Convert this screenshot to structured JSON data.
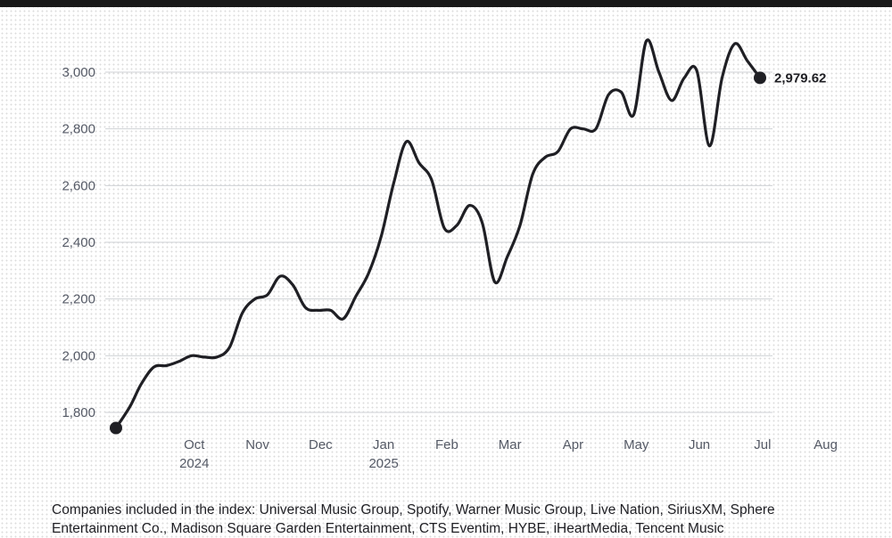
{
  "chart_data": {
    "type": "line",
    "title": "",
    "xlabel": "",
    "ylabel": "",
    "ylim": [
      1720,
      3130
    ],
    "yticks": [
      1800,
      2000,
      2200,
      2400,
      2600,
      2800,
      3000
    ],
    "ytick_labels": [
      "1,800",
      "2,000",
      "2,200",
      "2,400",
      "2,600",
      "2,800",
      "3,000"
    ],
    "xticks": [
      {
        "t": 1.5,
        "label": "Oct",
        "year": "2024"
      },
      {
        "t": 2.5,
        "label": "Nov",
        "year": ""
      },
      {
        "t": 3.5,
        "label": "Dec",
        "year": ""
      },
      {
        "t": 4.5,
        "label": "Jan",
        "year": "2025"
      },
      {
        "t": 5.5,
        "label": "Feb",
        "year": ""
      },
      {
        "t": 6.5,
        "label": "Mar",
        "year": ""
      },
      {
        "t": 7.5,
        "label": "Apr",
        "year": ""
      },
      {
        "t": 8.5,
        "label": "May",
        "year": ""
      },
      {
        "t": 9.5,
        "label": "Jun",
        "year": ""
      },
      {
        "t": 10.5,
        "label": "Jul",
        "year": ""
      },
      {
        "t": 11.5,
        "label": "Aug",
        "year": ""
      }
    ],
    "grid": true,
    "end_label": "2,979.62",
    "series": [
      {
        "color": "#1f1f24",
        "points": [
          [
            0.26,
            1745
          ],
          [
            0.48,
            1820
          ],
          [
            0.66,
            1900
          ],
          [
            0.86,
            1960
          ],
          [
            1.06,
            1965
          ],
          [
            1.26,
            1980
          ],
          [
            1.46,
            2000
          ],
          [
            1.66,
            1995
          ],
          [
            1.86,
            1995
          ],
          [
            2.06,
            2030
          ],
          [
            2.26,
            2150
          ],
          [
            2.46,
            2200
          ],
          [
            2.66,
            2215
          ],
          [
            2.86,
            2280
          ],
          [
            3.06,
            2250
          ],
          [
            3.26,
            2170
          ],
          [
            3.46,
            2160
          ],
          [
            3.66,
            2160
          ],
          [
            3.86,
            2130
          ],
          [
            4.06,
            2210
          ],
          [
            4.26,
            2290
          ],
          [
            4.46,
            2420
          ],
          [
            4.66,
            2610
          ],
          [
            4.86,
            2755
          ],
          [
            5.06,
            2680
          ],
          [
            5.26,
            2620
          ],
          [
            5.46,
            2450
          ],
          [
            5.66,
            2460
          ],
          [
            5.86,
            2530
          ],
          [
            6.06,
            2470
          ],
          [
            6.26,
            2260
          ],
          [
            6.46,
            2350
          ],
          [
            6.66,
            2460
          ],
          [
            6.86,
            2640
          ],
          [
            7.06,
            2700
          ],
          [
            7.26,
            2720
          ],
          [
            7.46,
            2800
          ],
          [
            7.66,
            2800
          ],
          [
            7.86,
            2800
          ],
          [
            8.06,
            2920
          ],
          [
            8.26,
            2930
          ],
          [
            8.46,
            2850
          ],
          [
            8.66,
            3110
          ],
          [
            8.86,
            3000
          ],
          [
            9.06,
            2900
          ],
          [
            9.26,
            2980
          ],
          [
            9.46,
            3005
          ],
          [
            9.66,
            2740
          ],
          [
            9.86,
            2980
          ],
          [
            10.06,
            3100
          ],
          [
            10.26,
            3040
          ],
          [
            10.46,
            2980
          ]
        ]
      }
    ]
  },
  "footnote": "Companies included in the index: Universal Music Group, Spotify, Warner Music Group, Live Nation, SiriusXM, Sphere Entertainment Co., Madison Square Garden Entertainment, CTS Eventim, HYBE, iHeartMedia, Tencent Music"
}
